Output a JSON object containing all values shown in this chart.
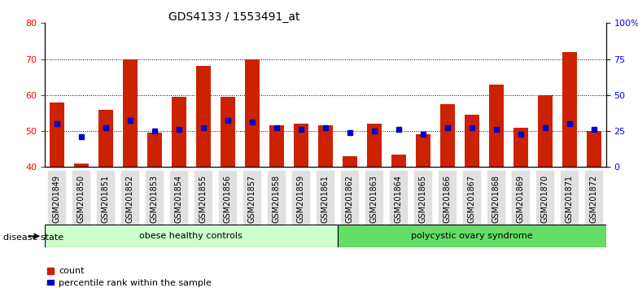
{
  "title": "GDS4133 / 1553491_at",
  "samples": [
    "GSM201849",
    "GSM201850",
    "GSM201851",
    "GSM201852",
    "GSM201853",
    "GSM201854",
    "GSM201855",
    "GSM201856",
    "GSM201857",
    "GSM201858",
    "GSM201859",
    "GSM201861",
    "GSM201862",
    "GSM201863",
    "GSM201864",
    "GSM201865",
    "GSM201866",
    "GSM201867",
    "GSM201868",
    "GSM201869",
    "GSM201870",
    "GSM201871",
    "GSM201872"
  ],
  "counts": [
    58,
    41,
    56,
    70,
    49.5,
    59.5,
    68,
    59.5,
    70,
    51.5,
    52,
    51.5,
    43,
    52,
    43.5,
    49,
    57.5,
    54.5,
    63,
    51,
    60,
    72,
    50
  ],
  "percentiles": [
    52,
    48.5,
    51,
    53,
    50,
    50.5,
    51,
    53,
    52.5,
    51,
    50.5,
    51,
    49.5,
    50,
    50.5,
    49,
    51,
    51,
    50.5,
    49,
    51,
    52,
    50.5
  ],
  "bar_color": "#cc2200",
  "dot_color": "#0000cc",
  "y_min": 40,
  "y_max": 80,
  "y_ticks_left": [
    40,
    50,
    60,
    70,
    80
  ],
  "y_ticks_right": [
    0,
    25,
    50,
    75,
    100
  ],
  "grid_values": [
    50,
    60,
    70
  ],
  "groups": [
    {
      "label": "obese healthy controls",
      "start": 0,
      "end": 12,
      "color": "#ccffcc"
    },
    {
      "label": "polycystic ovary syndrome",
      "start": 12,
      "end": 23,
      "color": "#66dd66"
    }
  ],
  "disease_state_label": "disease state",
  "legend": [
    {
      "label": "count",
      "color": "#cc2200",
      "marker": "s"
    },
    {
      "label": "percentile rank within the sample",
      "color": "#0000cc",
      "marker": "s"
    }
  ],
  "bar_width": 0.6,
  "bg_color": "#ffffff",
  "plot_bg": "#ffffff"
}
